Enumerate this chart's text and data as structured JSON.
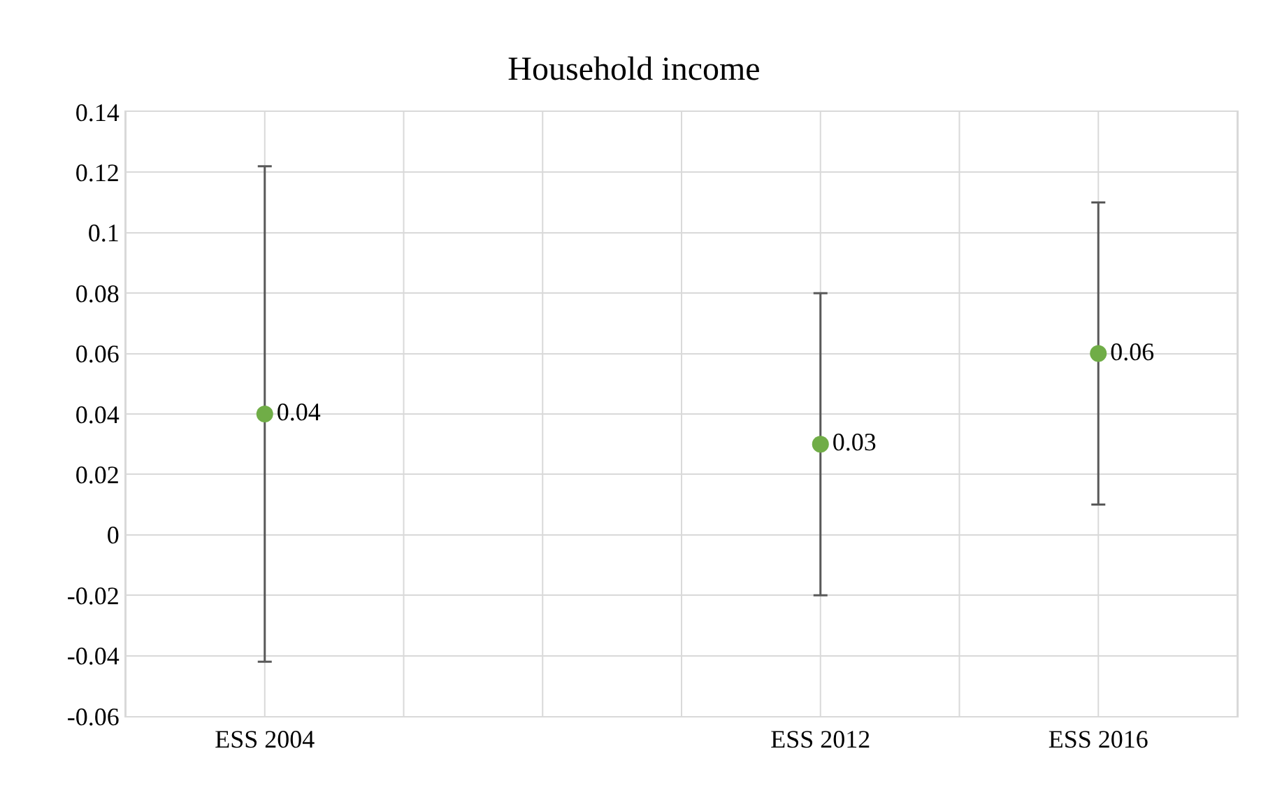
{
  "chart_data": {
    "type": "scatter",
    "title": "Household income",
    "categories": [
      null,
      "ESS 2004",
      null,
      null,
      null,
      "ESS 2012",
      null,
      "ESS 2016",
      null
    ],
    "series": [
      {
        "color": "#70ad47",
        "values": [
          null,
          0.04,
          null,
          null,
          null,
          0.03,
          null,
          0.06,
          null
        ],
        "errors": [
          null,
          [
            -0.042,
            0.122
          ],
          null,
          null,
          null,
          [
            -0.02,
            0.08
          ],
          null,
          [
            0.01,
            0.11
          ],
          null
        ]
      }
    ],
    "ylim": [
      -0.06,
      0.14
    ],
    "yticks": [
      -0.06,
      -0.04,
      -0.02,
      0,
      0.02,
      0.04,
      0.06,
      0.08,
      0.1,
      0.12,
      0.14
    ],
    "grid": true,
    "marker": "circle",
    "data_labels": true,
    "legend": false
  }
}
